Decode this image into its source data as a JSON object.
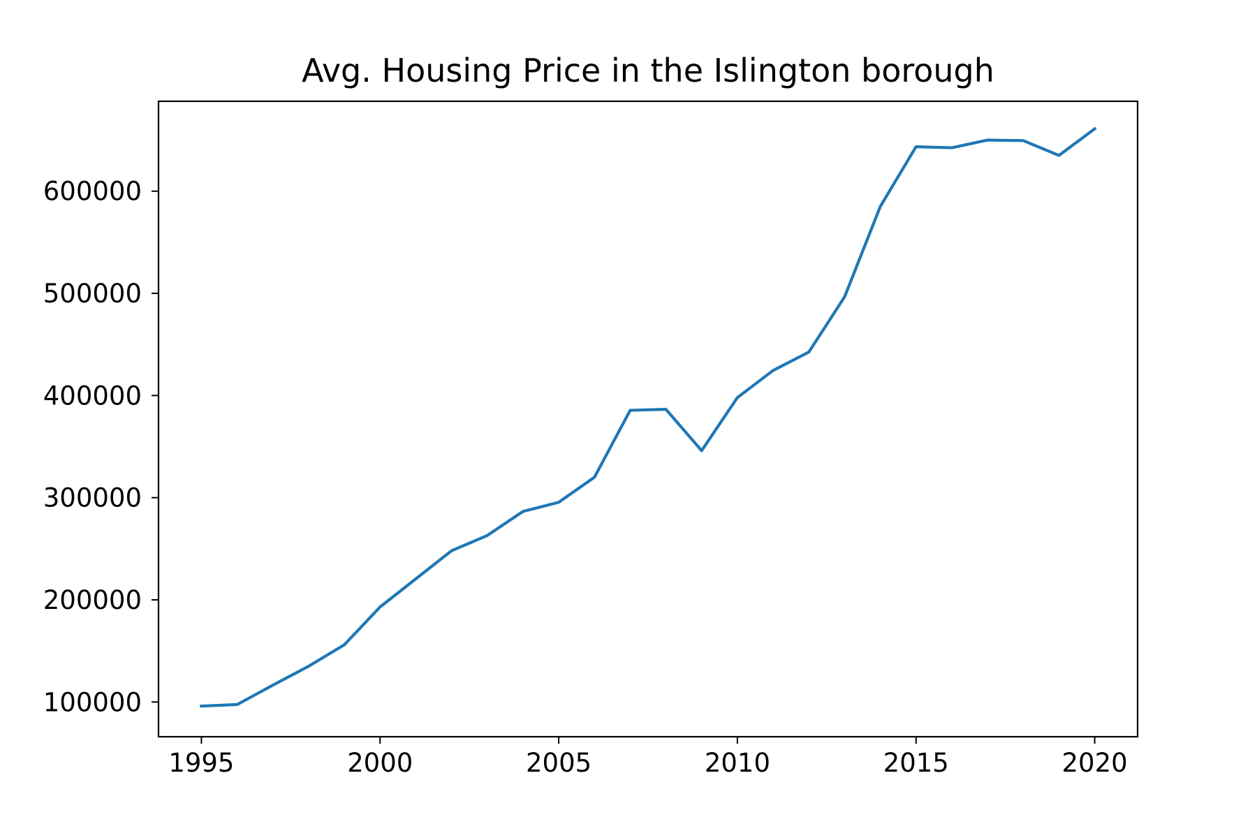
{
  "chart_data": {
    "type": "line",
    "title": "Avg. Housing Price in the Islington borough",
    "xlabel": "",
    "ylabel": "",
    "x": [
      1995,
      1996,
      1997,
      1998,
      1999,
      2000,
      2001,
      2002,
      2003,
      2004,
      2005,
      2006,
      2007,
      2008,
      2009,
      2010,
      2011,
      2012,
      2013,
      2014,
      2015,
      2016,
      2017,
      2018,
      2019,
      2020
    ],
    "series": [
      {
        "values": [
          96000,
          97500,
          116500,
          135000,
          156000,
          193000,
          220500,
          248000,
          263000,
          286500,
          295500,
          320000,
          385500,
          386500,
          346000,
          398000,
          424500,
          442500,
          496500,
          585000,
          643500,
          642500,
          650000,
          649500,
          635000,
          661000
        ],
        "color": "#1f77b4"
      }
    ],
    "xlim": [
      1993.8,
      2021.2
    ],
    "ylim": [
      66000,
      688000
    ],
    "x_ticks": [
      1995,
      2000,
      2005,
      2010,
      2015,
      2020
    ],
    "y_ticks": [
      100000,
      200000,
      300000,
      400000,
      500000,
      600000
    ],
    "x_tick_labels": [
      "1995",
      "2000",
      "2005",
      "2010",
      "2015",
      "2020"
    ],
    "y_tick_labels": [
      "100000",
      "200000",
      "300000",
      "400000",
      "500000",
      "600000"
    ],
    "grid": false,
    "legend": "none"
  }
}
